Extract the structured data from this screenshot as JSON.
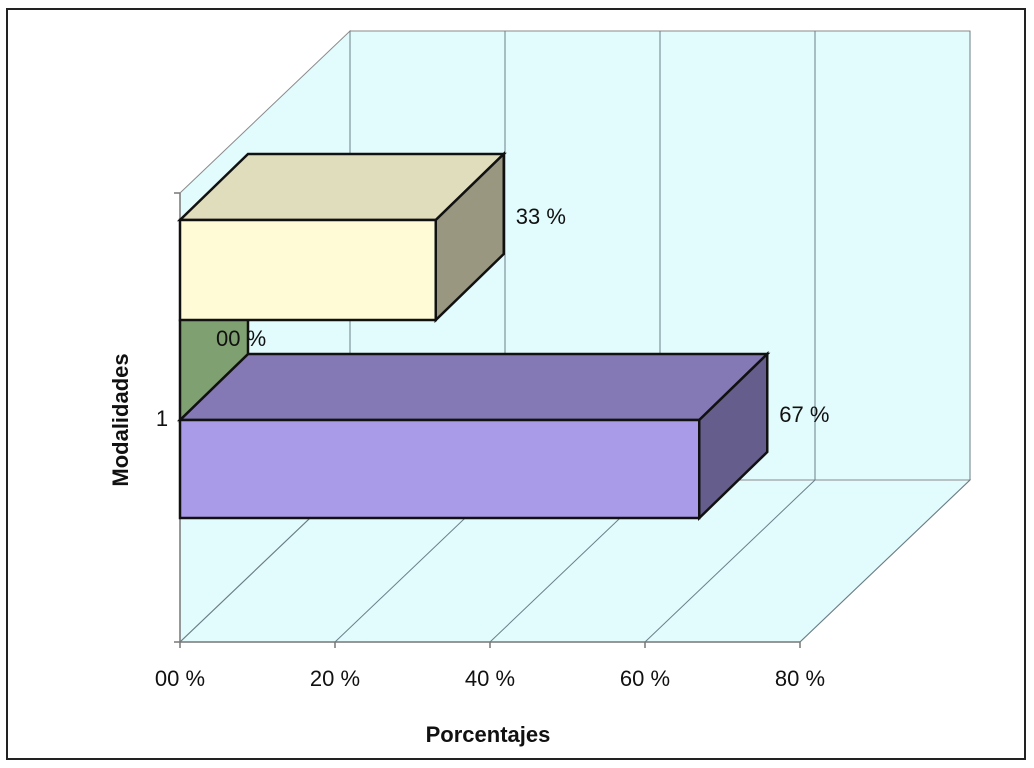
{
  "chart_data": {
    "type": "bar",
    "orientation": "horizontal",
    "style": "3d",
    "categories": [
      "1"
    ],
    "series": [
      {
        "values": [
          67
        ],
        "label": "67 %",
        "color": "#a99be8"
      },
      {
        "values": [
          0
        ],
        "label": "00 %",
        "color": "#7fa070"
      },
      {
        "values": [
          33
        ],
        "label": "33 %",
        "color": "#fffbd6"
      }
    ],
    "xlabel": "Porcentajes",
    "ylabel": "Modalidades",
    "xlim": [
      0,
      80
    ],
    "xticks": [
      {
        "value": 0,
        "label": "00 %"
      },
      {
        "value": 20,
        "label": "20 %"
      },
      {
        "value": 40,
        "label": "40 %"
      },
      {
        "value": 60,
        "label": "60 %"
      },
      {
        "value": 80,
        "label": "80 %"
      }
    ],
    "grid": true,
    "wall_color": "#e2fbfc",
    "legend": "none"
  }
}
